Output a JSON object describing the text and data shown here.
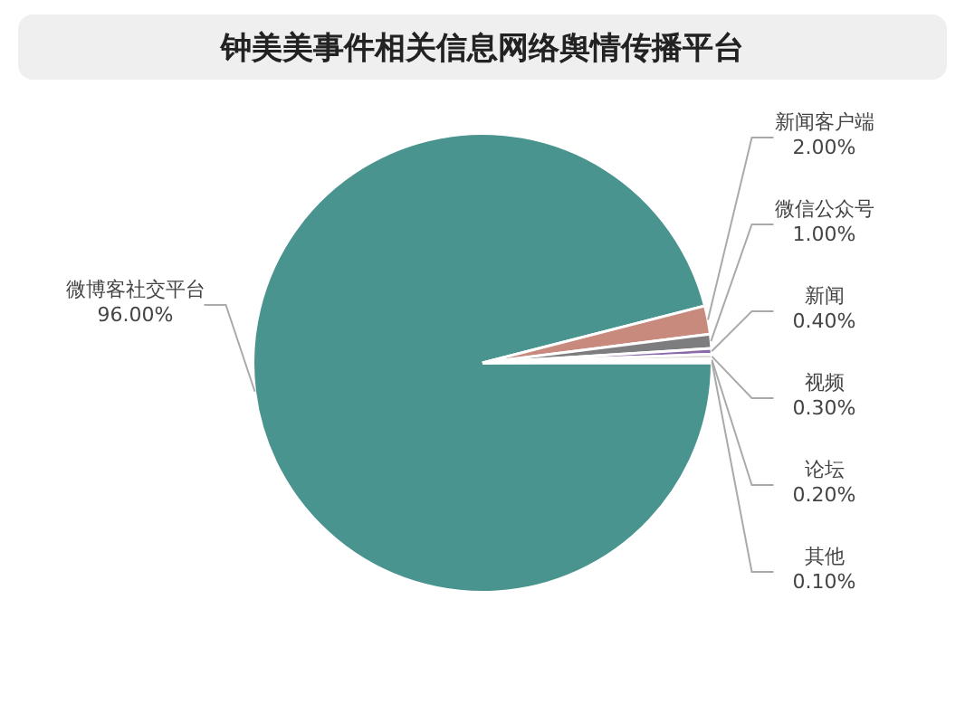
{
  "chart_data": {
    "type": "pie",
    "title": "钟美美事件相关信息网络舆情传播平台",
    "categories": [
      "微博客社交平台",
      "新闻客户端",
      "微信公众号",
      "新闻",
      "视频",
      "论坛",
      "其他"
    ],
    "values": [
      96,
      2,
      1,
      0.4,
      0.3,
      0.2,
      0.1
    ],
    "value_labels": [
      "96.00%",
      "2.00%",
      "1.00%",
      "0.40%",
      "0.30%",
      "0.20%",
      "0.10%"
    ],
    "colors": [
      "#4a9490",
      "#c98a7e",
      "#7d7d80",
      "#8a6aa8",
      "#d8d0c8",
      "#b8c8d0",
      "#d0b0b0"
    ],
    "legend": false
  }
}
